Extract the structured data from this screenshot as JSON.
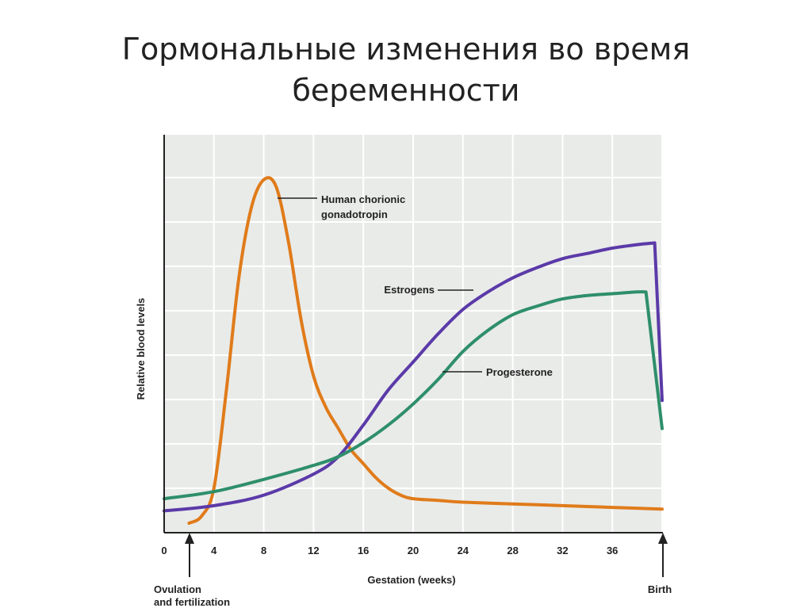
{
  "title_line1": "Гормональные изменения во время",
  "title_line2": "беременности",
  "chart_data": {
    "type": "line",
    "xlabel": "Gestation (weeks)",
    "ylabel": "Relative blood levels",
    "xlim": [
      0,
      40
    ],
    "ylim": [
      0,
      100
    ],
    "xticks": [
      "0",
      "4",
      "8",
      "12",
      "16",
      "20",
      "24",
      "28",
      "32",
      "36"
    ],
    "grid": true,
    "annotations": {
      "ovulation_line1": "Ovulation",
      "ovulation_line2": "and fertilization",
      "birth": "Birth"
    },
    "series": [
      {
        "name_line1": "Human chorionic",
        "name_line2": "gonadotropin",
        "color": "#e07b1a",
        "x": [
          2,
          3,
          4,
          5,
          6,
          7,
          8,
          9,
          10,
          11,
          12,
          13,
          14,
          15,
          16,
          17,
          18,
          19,
          20,
          22,
          24,
          28,
          32,
          36,
          40
        ],
        "y": [
          0,
          2,
          10,
          38,
          70,
          90,
          98,
          96,
          80,
          58,
          42,
          33,
          27,
          21,
          17,
          13,
          10,
          8,
          7,
          6.5,
          6,
          5.5,
          5,
          4.5,
          4
        ]
      },
      {
        "name": "Estrogens",
        "color": "#5b3aa8",
        "x": [
          0,
          4,
          8,
          12,
          14,
          16,
          18,
          20,
          22,
          24,
          26,
          28,
          30,
          32,
          34,
          36,
          38,
          39.4,
          40
        ],
        "y": [
          3.5,
          5,
          8,
          14,
          19,
          28,
          38,
          46,
          54,
          61,
          66,
          70,
          73,
          75.5,
          77,
          78.5,
          79.5,
          80,
          35
        ]
      },
      {
        "name": "Progesterone",
        "color": "#2e8f6a",
        "x": [
          0,
          4,
          8,
          12,
          14,
          16,
          18,
          20,
          22,
          24,
          26,
          28,
          30,
          32,
          34,
          36,
          38,
          38.7,
          40
        ],
        "y": [
          7,
          9,
          12.5,
          16.5,
          19,
          23,
          28,
          34,
          41,
          49,
          55,
          59.5,
          62,
          64,
          65,
          65.5,
          66,
          66,
          27
        ]
      }
    ]
  }
}
